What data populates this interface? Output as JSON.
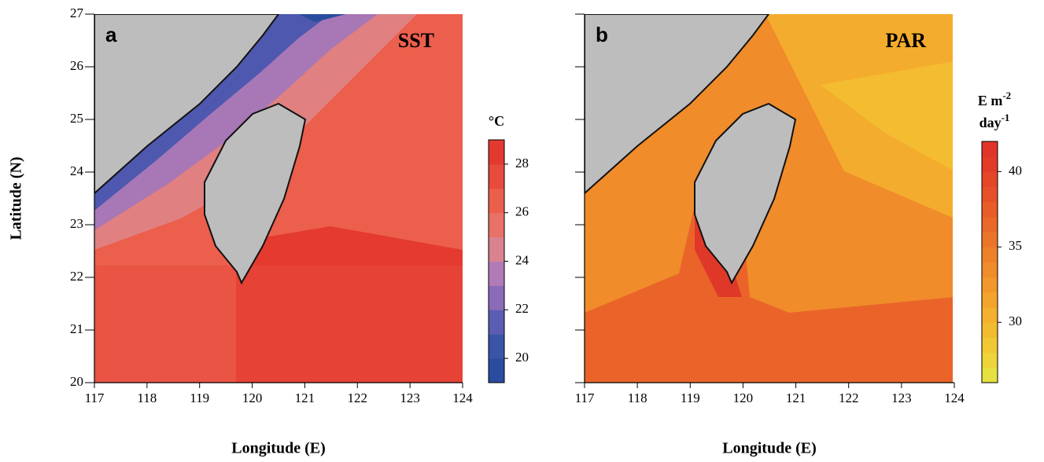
{
  "chart_data": [
    {
      "type": "map",
      "panel_label": "a",
      "title": "SST",
      "x_label": "Longitude (E)",
      "y_label": "Latitude (N)",
      "xlim": [
        117,
        124
      ],
      "ylim": [
        20,
        27
      ],
      "xticks": [
        117,
        118,
        119,
        120,
        121,
        122,
        123,
        124
      ],
      "yticks": [
        20,
        21,
        22,
        23,
        24,
        25,
        26,
        27
      ],
      "y_tick_labels": true,
      "colorbar": {
        "label": [
          {
            "text": "°C"
          }
        ],
        "lim": [
          19,
          29
        ],
        "ticks": [
          20,
          22,
          24,
          26,
          28
        ],
        "colors": [
          "#2a4c9e",
          "#3a54a8",
          "#5a5db2",
          "#8a6bb8",
          "#b07bb6",
          "#d98290",
          "#e87268",
          "#ec5f4c",
          "#e84a3c",
          "#e23a30"
        ]
      }
    },
    {
      "type": "map",
      "panel_label": "b",
      "title": "PAR",
      "x_label": "Longitude (E)",
      "xlim": [
        117,
        124
      ],
      "ylim": [
        20,
        27
      ],
      "xticks": [
        117,
        118,
        119,
        120,
        121,
        122,
        123,
        124
      ],
      "yticks": [
        20,
        21,
        22,
        23,
        24,
        25,
        26,
        27
      ],
      "y_tick_labels": false,
      "colorbar": {
        "label": [
          {
            "text": "E m",
            "sup": "-2"
          },
          {
            "text": "day",
            "sup": "-1"
          }
        ],
        "lim": [
          26,
          42
        ],
        "ticks": [
          30,
          35,
          40
        ],
        "colors": [
          "#e6e040",
          "#ecd43a",
          "#f0c834",
          "#f2bc30",
          "#f4b02e",
          "#f4a42c",
          "#f2982a",
          "#f08c2a",
          "#ee8028",
          "#ec7428",
          "#ea6828",
          "#e85c28",
          "#e65028",
          "#e44628",
          "#e23c28",
          "#e03428"
        ]
      }
    }
  ]
}
